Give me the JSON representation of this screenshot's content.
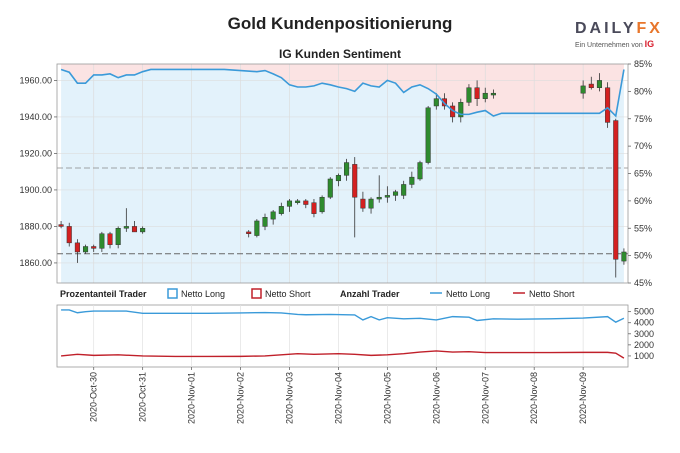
{
  "header": {
    "title": "Gold Kundenpositionierung",
    "subtitle": "IG Kunden Sentiment"
  },
  "logo": {
    "brand_a": "DAILY",
    "brand_b": "FX",
    "tagline": "Ein Unternehmen von",
    "ig": "IG"
  },
  "legend": {
    "pct_label": "Prozentanteil Trader",
    "pct_long": "Netto Long",
    "pct_short": "Netto Short",
    "count_label": "Anzahl Trader",
    "count_long": "Netto Long",
    "count_short": "Netto Short"
  },
  "colors": {
    "up": "#2e8b2e",
    "down": "#d42020",
    "long": "#3a9ad9",
    "short": "#c0202a",
    "long_fill": "#e3f2fb",
    "short_fill": "#fbe3e3"
  },
  "chart_data": {
    "type": "candlestick",
    "title": "Gold Kundenpositionierung",
    "subtitle": "IG Kunden Sentiment",
    "x_tick_labels": [
      "2020-Oct-30",
      "2020-Oct-31",
      "2020-Nov-01",
      "2020-Nov-02",
      "2020-Nov-03",
      "2020-Nov-04",
      "2020-Nov-05",
      "2020-Nov-06",
      "2020-Nov-07",
      "2020-Nov-08",
      "2020-Nov-09"
    ],
    "price_axis": {
      "ylim": [
        1849,
        1969
      ],
      "ticks": [
        "1860.00",
        "1880.00",
        "1900.00",
        "1920.00",
        "1940.00",
        "1960.00"
      ],
      "reference_line": 1865
    },
    "pct_axis": {
      "ylim": [
        45,
        85
      ],
      "ticks": [
        "45%",
        "50%",
        "55%",
        "60%",
        "65%",
        "70%",
        "75%",
        "80%",
        "85%"
      ],
      "reference_line": 66
    },
    "count_axis": {
      "ylim": [
        0,
        5600
      ],
      "ticks": [
        "1000",
        "2000",
        "3000",
        "4000",
        "5000"
      ]
    },
    "candles": [
      {
        "x": 0,
        "o": 1881,
        "h": 1883,
        "l": 1879,
        "c": 1880
      },
      {
        "x": 1,
        "o": 1880,
        "h": 1882,
        "l": 1869,
        "c": 1871
      },
      {
        "x": 2,
        "o": 1871,
        "h": 1873,
        "l": 1860,
        "c": 1866
      },
      {
        "x": 3,
        "o": 1866,
        "h": 1870,
        "l": 1865,
        "c": 1869
      },
      {
        "x": 4,
        "o": 1869,
        "h": 1870,
        "l": 1866,
        "c": 1868
      },
      {
        "x": 5,
        "o": 1868,
        "h": 1877,
        "l": 1866,
        "c": 1876
      },
      {
        "x": 6,
        "o": 1876,
        "h": 1877,
        "l": 1868,
        "c": 1870
      },
      {
        "x": 7,
        "o": 1870,
        "h": 1880,
        "l": 1868,
        "c": 1879
      },
      {
        "x": 8,
        "o": 1879,
        "h": 1890,
        "l": 1877,
        "c": 1880
      },
      {
        "x": 9,
        "o": 1880,
        "h": 1883,
        "l": 1877,
        "c": 1877
      },
      {
        "x": 10,
        "o": 1877,
        "h": 1880,
        "l": 1876,
        "c": 1879
      },
      {
        "x": 23,
        "o": 1877,
        "h": 1878,
        "l": 1874,
        "c": 1876
      },
      {
        "x": 24,
        "o": 1875,
        "h": 1884,
        "l": 1874,
        "c": 1883
      },
      {
        "x": 25,
        "o": 1880,
        "h": 1887,
        "l": 1878,
        "c": 1885
      },
      {
        "x": 26,
        "o": 1884,
        "h": 1889,
        "l": 1881,
        "c": 1888
      },
      {
        "x": 27,
        "o": 1887,
        "h": 1893,
        "l": 1886,
        "c": 1891
      },
      {
        "x": 28,
        "o": 1891,
        "h": 1895,
        "l": 1888,
        "c": 1894
      },
      {
        "x": 29,
        "o": 1893,
        "h": 1895,
        "l": 1892,
        "c": 1894
      },
      {
        "x": 30,
        "o": 1894,
        "h": 1895,
        "l": 1890,
        "c": 1892
      },
      {
        "x": 31,
        "o": 1893,
        "h": 1895,
        "l": 1885,
        "c": 1887
      },
      {
        "x": 32,
        "o": 1888,
        "h": 1897,
        "l": 1887,
        "c": 1896
      },
      {
        "x": 33,
        "o": 1896,
        "h": 1907,
        "l": 1895,
        "c": 1906
      },
      {
        "x": 34,
        "o": 1905,
        "h": 1909,
        "l": 1902,
        "c": 1908
      },
      {
        "x": 35,
        "o": 1908,
        "h": 1917,
        "l": 1905,
        "c": 1915
      },
      {
        "x": 36,
        "o": 1914,
        "h": 1918,
        "l": 1874,
        "c": 1896
      },
      {
        "x": 37,
        "o": 1895,
        "h": 1899,
        "l": 1888,
        "c": 1890
      },
      {
        "x": 38,
        "o": 1890,
        "h": 1896,
        "l": 1887,
        "c": 1895
      },
      {
        "x": 39,
        "o": 1895,
        "h": 1908,
        "l": 1893,
        "c": 1896
      },
      {
        "x": 40,
        "o": 1896,
        "h": 1902,
        "l": 1893,
        "c": 1897
      },
      {
        "x": 41,
        "o": 1897,
        "h": 1900,
        "l": 1894,
        "c": 1899
      },
      {
        "x": 42,
        "o": 1897,
        "h": 1905,
        "l": 1895,
        "c": 1903
      },
      {
        "x": 43,
        "o": 1903,
        "h": 1910,
        "l": 1901,
        "c": 1907
      },
      {
        "x": 44,
        "o": 1906,
        "h": 1916,
        "l": 1905,
        "c": 1915
      },
      {
        "x": 45,
        "o": 1915,
        "h": 1946,
        "l": 1914,
        "c": 1945
      },
      {
        "x": 46,
        "o": 1946,
        "h": 1953,
        "l": 1944,
        "c": 1950
      },
      {
        "x": 47,
        "o": 1950,
        "h": 1953,
        "l": 1944,
        "c": 1946
      },
      {
        "x": 48,
        "o": 1946,
        "h": 1948,
        "l": 1937,
        "c": 1940
      },
      {
        "x": 49,
        "o": 1940,
        "h": 1950,
        "l": 1937,
        "c": 1948
      },
      {
        "x": 50,
        "o": 1948,
        "h": 1958,
        "l": 1946,
        "c": 1956
      },
      {
        "x": 51,
        "o": 1956,
        "h": 1960,
        "l": 1946,
        "c": 1950
      },
      {
        "x": 52,
        "o": 1950,
        "h": 1956,
        "l": 1948,
        "c": 1953
      },
      {
        "x": 53,
        "o": 1952,
        "h": 1955,
        "l": 1950,
        "c": 1953
      },
      {
        "x": 64,
        "o": 1953,
        "h": 1960,
        "l": 1950,
        "c": 1957
      },
      {
        "x": 65,
        "o": 1958,
        "h": 1962,
        "l": 1955,
        "c": 1956
      },
      {
        "x": 66,
        "o": 1956,
        "h": 1964,
        "l": 1954,
        "c": 1960
      },
      {
        "x": 67,
        "o": 1956,
        "h": 1959,
        "l": 1934,
        "c": 1937
      },
      {
        "x": 68,
        "o": 1938,
        "h": 1939,
        "l": 1852,
        "c": 1862
      },
      {
        "x": 69,
        "o": 1861,
        "h": 1868,
        "l": 1859,
        "c": 1866
      }
    ],
    "pct_long_series": {
      "name": "Netto Long",
      "points": [
        [
          0,
          84
        ],
        [
          1,
          83.5
        ],
        [
          2,
          81.5
        ],
        [
          3,
          81.5
        ],
        [
          4,
          83
        ],
        [
          5,
          83
        ],
        [
          6,
          83.2
        ],
        [
          7,
          82.5
        ],
        [
          8,
          83
        ],
        [
          9,
          83
        ],
        [
          10,
          83.6
        ],
        [
          11,
          84
        ],
        [
          12,
          84
        ],
        [
          14,
          84
        ],
        [
          16,
          84
        ],
        [
          18,
          84
        ],
        [
          20,
          84
        ],
        [
          22,
          83.8
        ],
        [
          24,
          83.6
        ],
        [
          25,
          83.8
        ],
        [
          26,
          83.2
        ],
        [
          27,
          82.5
        ],
        [
          28,
          81.2
        ],
        [
          29,
          80.8
        ],
        [
          30,
          80.8
        ],
        [
          31,
          81
        ],
        [
          32,
          81.5
        ],
        [
          33,
          81.2
        ],
        [
          34,
          80.8
        ],
        [
          35,
          80.5
        ],
        [
          36,
          80
        ],
        [
          37,
          81.5
        ],
        [
          38,
          81
        ],
        [
          39,
          80.8
        ],
        [
          40,
          82
        ],
        [
          41,
          81.5
        ],
        [
          42,
          79.8
        ],
        [
          43,
          80.8
        ],
        [
          44,
          81.2
        ],
        [
          45,
          80.5
        ],
        [
          46,
          79.5
        ],
        [
          47,
          77.8
        ],
        [
          48,
          76.5
        ],
        [
          49,
          75.8
        ],
        [
          50,
          75.8
        ],
        [
          51,
          76.2
        ],
        [
          52,
          76.5
        ],
        [
          53,
          75.5
        ],
        [
          54,
          76
        ],
        [
          58,
          76
        ],
        [
          62,
          76
        ],
        [
          66,
          76
        ],
        [
          67,
          77
        ],
        [
          68,
          75.5
        ],
        [
          69,
          84
        ]
      ]
    },
    "count_long_series": {
      "name": "Netto Long",
      "points": [
        [
          0,
          5150
        ],
        [
          1,
          5150
        ],
        [
          2,
          4900
        ],
        [
          3,
          5000
        ],
        [
          4,
          5050
        ],
        [
          6,
          5050
        ],
        [
          8,
          5050
        ],
        [
          10,
          4850
        ],
        [
          14,
          4850
        ],
        [
          18,
          4850
        ],
        [
          22,
          4880
        ],
        [
          25,
          4920
        ],
        [
          27,
          4880
        ],
        [
          29,
          4750
        ],
        [
          30,
          4720
        ],
        [
          33,
          4750
        ],
        [
          36,
          4700
        ],
        [
          37,
          4250
        ],
        [
          38,
          4550
        ],
        [
          39,
          4250
        ],
        [
          40,
          4450
        ],
        [
          42,
          4350
        ],
        [
          44,
          4400
        ],
        [
          46,
          4250
        ],
        [
          48,
          4550
        ],
        [
          50,
          4500
        ],
        [
          51,
          4200
        ],
        [
          53,
          4350
        ],
        [
          56,
          4320
        ],
        [
          60,
          4350
        ],
        [
          64,
          4420
        ],
        [
          67,
          4550
        ],
        [
          68,
          4050
        ],
        [
          69,
          4400
        ]
      ]
    },
    "count_short_series": {
      "name": "Netto Short",
      "points": [
        [
          0,
          1000
        ],
        [
          2,
          1150
        ],
        [
          4,
          1050
        ],
        [
          7,
          1100
        ],
        [
          10,
          1000
        ],
        [
          14,
          950
        ],
        [
          18,
          950
        ],
        [
          22,
          960
        ],
        [
          25,
          1000
        ],
        [
          27,
          1100
        ],
        [
          29,
          1200
        ],
        [
          31,
          1150
        ],
        [
          34,
          1200
        ],
        [
          36,
          1150
        ],
        [
          38,
          1050
        ],
        [
          40,
          1100
        ],
        [
          42,
          1200
        ],
        [
          44,
          1350
        ],
        [
          46,
          1450
        ],
        [
          48,
          1350
        ],
        [
          50,
          1380
        ],
        [
          52,
          1300
        ],
        [
          56,
          1300
        ],
        [
          60,
          1300
        ],
        [
          64,
          1320
        ],
        [
          67,
          1320
        ],
        [
          68,
          1250
        ],
        [
          69,
          800
        ]
      ]
    }
  }
}
